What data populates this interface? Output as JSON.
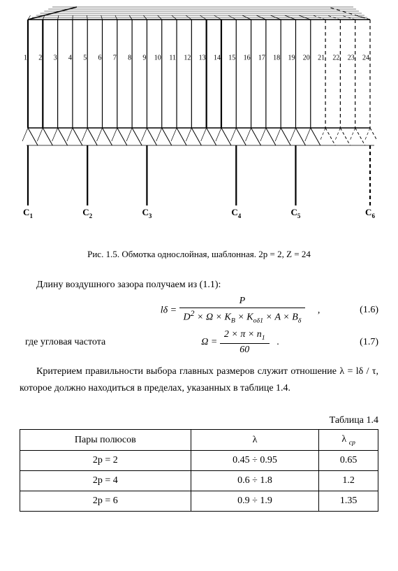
{
  "diagram": {
    "slot_count": 24,
    "terminals": [
      "C",
      "C",
      "C",
      "C",
      "C",
      "C"
    ],
    "terminal_subs": [
      "1",
      "2",
      "3",
      "4",
      "5",
      "6"
    ],
    "terminal_slots": [
      1,
      5,
      9,
      15,
      19,
      24
    ],
    "dashed_from_slot": 21,
    "colors": {
      "stroke": "#000000"
    }
  },
  "caption": "Рис. 1.5. Обмотка однослойная, шаблонная. 2p = 2, Z = 24",
  "p1": "Длину воздушного зазора получаем из (1.1):",
  "eq1": {
    "lhs": "lδ =",
    "num": "P",
    "den_html": "D<sup>2</sup> × Ω × K<sub>B</sub> × K<sub>оδ1</sub> × A × B<sub>δ</sub>",
    "trail": "    ,",
    "num_label": "(1.6)"
  },
  "eq2": {
    "lead": "где угловая частота",
    "lhs": "Ω =",
    "num_html": "2 × π × n<sub>1</sub>",
    "den": "60",
    "trail": "  .",
    "num_label": "(1.7)"
  },
  "p2": "Критерием правильности выбора главных размеров служит отношение λ = lδ / τ, которое должно находиться в пределах, указанных в таблице 1.4.",
  "table": {
    "title": "Таблица 1.4",
    "headers": [
      "Пары полюсов",
      "λ",
      "λ <sub>ср</sub>"
    ],
    "rows": [
      [
        "2p = 2",
        "0.45 ÷ 0.95",
        "0.65"
      ],
      [
        "2p = 4",
        "0.6 ÷  1.8",
        "1.2"
      ],
      [
        "2p = 6",
        "0.9 ÷ 1.9",
        "1.35"
      ]
    ]
  }
}
